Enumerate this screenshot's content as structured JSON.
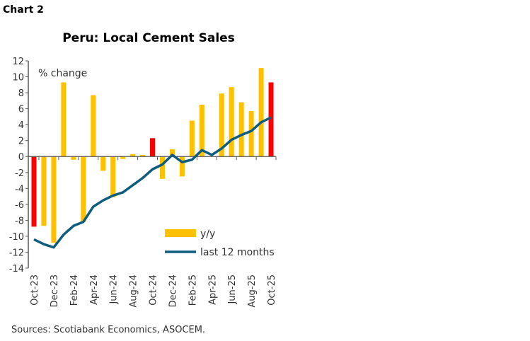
{
  "chart_label": "Chart 2",
  "source": "Sources: Scotiabank Economics, ASOCEM.",
  "chart_data": {
    "type": "bar+line",
    "title": "Peru: Local Cement Sales",
    "ylabel": "% change",
    "ylim": [
      -14,
      12
    ],
    "yticks": [
      12,
      10,
      8,
      6,
      4,
      2,
      0,
      -2,
      -4,
      -6,
      -8,
      -10,
      -12,
      -14
    ],
    "categories": [
      "Oct-23",
      "Nov-23",
      "Dec-23",
      "Jan-24",
      "Feb-24",
      "Mar-24",
      "Apr-24",
      "May-24",
      "Jun-24",
      "Jul-24",
      "Aug-24",
      "Sep-24",
      "Oct-24",
      "Nov-24",
      "Dec-24",
      "Jan-25",
      "Feb-25",
      "Mar-25",
      "Apr-25",
      "May-25",
      "Jun-25",
      "Jul-25",
      "Aug-25",
      "Sep-25",
      "Oct-25"
    ],
    "xtick_labels": [
      "Oct-23",
      "Dec-23",
      "Feb-24",
      "Apr-24",
      "Jun-24",
      "Aug-24",
      "Oct-24",
      "Dec-24",
      "Feb-25",
      "Apr-25",
      "Jun-25",
      "Aug-25",
      "Oct-25"
    ],
    "legend_position": "bottom-right",
    "colors": {
      "bar": "#FFC000",
      "highlight": "#FF0000",
      "line": "#0E5C7E"
    },
    "highlighted": [
      "Oct-23",
      "Oct-24",
      "Oct-25"
    ],
    "series": [
      {
        "name": "y/y",
        "type": "bar",
        "values": [
          -8.8,
          -8.7,
          -10.8,
          9.3,
          -0.4,
          -8.2,
          7.7,
          -1.8,
          -5.1,
          -0.3,
          0.3,
          0.2,
          2.3,
          -2.8,
          0.9,
          -2.5,
          4.5,
          6.5,
          0.0,
          7.9,
          8.7,
          6.8,
          5.7,
          11.1,
          9.3
        ]
      },
      {
        "name": "last 12 months",
        "type": "line",
        "values": [
          -10.4,
          -11.0,
          -11.4,
          -9.8,
          -8.7,
          -8.2,
          -6.3,
          -5.5,
          -4.9,
          -4.5,
          -3.6,
          -2.7,
          -1.6,
          -1.0,
          0.2,
          -0.7,
          -0.4,
          0.8,
          0.2,
          1.0,
          2.1,
          2.7,
          3.2,
          4.3,
          4.9
        ]
      }
    ]
  }
}
